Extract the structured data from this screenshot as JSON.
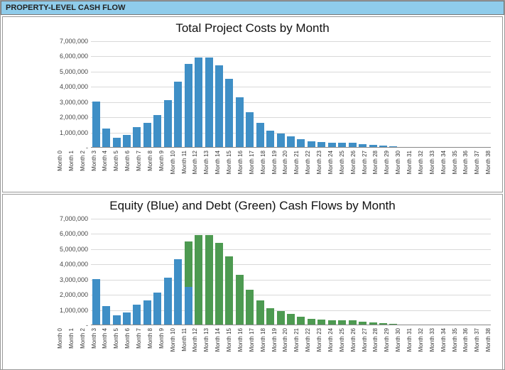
{
  "header": {
    "title": "PROPERTY-LEVEL CASH FLOW",
    "bg": "#8fcceb"
  },
  "categories": [
    "Month 0",
    "Month 1",
    "Month 2",
    "Month 3",
    "Month 4",
    "Month 5",
    "Month 6",
    "Month 7",
    "Month 8",
    "Month 9",
    "Month 10",
    "Month 11",
    "Month 12",
    "Month 13",
    "Month 14",
    "Month 15",
    "Month 16",
    "Month 17",
    "Month 18",
    "Month 19",
    "Month 20",
    "Month 21",
    "Month 22",
    "Month 23",
    "Month 24",
    "Month 25",
    "Month 26",
    "Month 27",
    "Month 28",
    "Month 29",
    "Month 30",
    "Month 31",
    "Month 32",
    "Month 33",
    "Month 34",
    "Month 35",
    "Month 36",
    "Month 37",
    "Month 38"
  ],
  "y_ticks": [
    0,
    1000000,
    2000000,
    3000000,
    4000000,
    5000000,
    6000000,
    7000000
  ],
  "y_tick_labels": [
    "-",
    "1,000,000",
    "2,000,000",
    "3,000,000",
    "4,000,000",
    "5,000,000",
    "6,000,000",
    "7,000,000"
  ],
  "ylim": [
    0,
    7000000
  ],
  "colors": {
    "blue": "#3f8fc6",
    "green": "#4d9a51",
    "grid": "#d9d9d9",
    "axis": "#888"
  },
  "chart1": {
    "title": "Total Project Costs by Month",
    "type": "bar",
    "title_fontsize": 17,
    "series": [
      {
        "name": "total",
        "color": "blue",
        "values": [
          3000000,
          1200000,
          600000,
          800000,
          1300000,
          1600000,
          2100000,
          3100000,
          4300000,
          5500000,
          5900000,
          5900000,
          5400000,
          4500000,
          3300000,
          2300000,
          1600000,
          1100000,
          900000,
          700000,
          500000,
          400000,
          350000,
          300000,
          300000,
          300000,
          200000,
          120000,
          80000,
          50000,
          0,
          0,
          0,
          0,
          0,
          0,
          0,
          0,
          0
        ]
      }
    ]
  },
  "chart2": {
    "title": "Equity (Blue) and Debt (Green) Cash Flows by Month",
    "type": "stacked-bar",
    "title_fontsize": 17,
    "series": [
      {
        "name": "equity",
        "color": "blue",
        "values": [
          3000000,
          1200000,
          600000,
          800000,
          1300000,
          1600000,
          2100000,
          3100000,
          4300000,
          2500000,
          0,
          0,
          0,
          0,
          0,
          0,
          0,
          0,
          0,
          0,
          0,
          0,
          0,
          0,
          0,
          0,
          0,
          0,
          0,
          0,
          0,
          0,
          0,
          0,
          0,
          0,
          0,
          0,
          0
        ]
      },
      {
        "name": "debt",
        "color": "green",
        "values": [
          0,
          0,
          0,
          0,
          0,
          0,
          0,
          0,
          0,
          3000000,
          5900000,
          5900000,
          5400000,
          4500000,
          3300000,
          2300000,
          1600000,
          1100000,
          900000,
          700000,
          500000,
          400000,
          350000,
          300000,
          300000,
          300000,
          200000,
          120000,
          80000,
          50000,
          0,
          0,
          0,
          0,
          0,
          0,
          0,
          0,
          0
        ]
      }
    ]
  }
}
